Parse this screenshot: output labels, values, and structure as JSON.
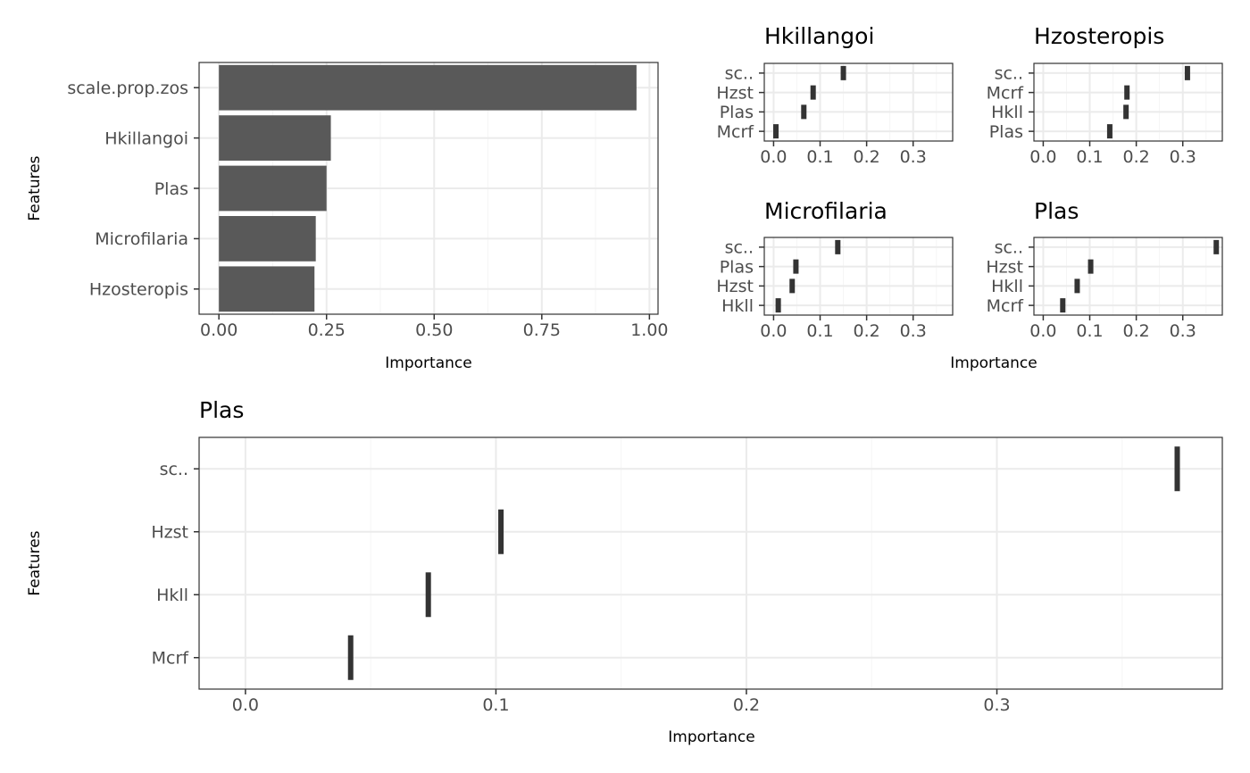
{
  "chart_data": [
    {
      "id": "overall",
      "type": "bar",
      "orientation": "horizontal",
      "title": "",
      "xlabel": "Importance",
      "ylabel": "Features",
      "categories": [
        "scale.prop.zos",
        "Hkillangoi",
        "Plas",
        "Microfilaria",
        "Hzosteropis"
      ],
      "values": [
        0.97,
        0.26,
        0.25,
        0.225,
        0.222
      ],
      "xlim": [
        -0.046,
        1.02
      ],
      "xticks": [
        0,
        0.25,
        0.5,
        0.75,
        1.0
      ],
      "xtick_labels": [
        "0.00",
        "0.25",
        "0.50",
        "0.75",
        "1.00"
      ],
      "bar_color": "#595959",
      "grid": true
    },
    {
      "id": "small-hkillangoi",
      "type": "scatter",
      "mark": "vertical-tick",
      "title": "Hkillangoi",
      "xlabel": "",
      "ylabel": "",
      "categories": [
        "sc..",
        "Hzst",
        "Plas",
        "Mcrf"
      ],
      "values": [
        0.15,
        0.085,
        0.065,
        0.005
      ],
      "xlim": [
        -0.02,
        0.385
      ],
      "xticks": [
        0,
        0.1,
        0.2,
        0.3
      ],
      "xtick_labels": [
        "0.0",
        "0.1",
        "0.2",
        "0.3"
      ],
      "grid": true
    },
    {
      "id": "small-hzosteropis",
      "type": "scatter",
      "mark": "vertical-tick",
      "title": "Hzosteropis",
      "xlabel": "",
      "ylabel": "",
      "categories": [
        "sc..",
        "Mcrf",
        "Hkll",
        "Plas"
      ],
      "values": [
        0.31,
        0.18,
        0.178,
        0.143
      ],
      "xlim": [
        -0.02,
        0.385
      ],
      "xticks": [
        0,
        0.1,
        0.2,
        0.3
      ],
      "xtick_labels": [
        "0.0",
        "0.1",
        "0.2",
        "0.3"
      ],
      "grid": true
    },
    {
      "id": "small-microfilaria",
      "type": "scatter",
      "mark": "vertical-tick",
      "title": "Microfilaria",
      "xlabel": "",
      "ylabel": "",
      "categories": [
        "sc..",
        "Plas",
        "Hzst",
        "Hkll"
      ],
      "values": [
        0.138,
        0.048,
        0.04,
        0.01
      ],
      "xlim": [
        -0.02,
        0.385
      ],
      "xticks": [
        0,
        0.1,
        0.2,
        0.3
      ],
      "xtick_labels": [
        "0.0",
        "0.1",
        "0.2",
        "0.3"
      ],
      "grid": true
    },
    {
      "id": "small-plas",
      "type": "scatter",
      "mark": "vertical-tick",
      "title": "Plas",
      "xlabel": "",
      "ylabel": "",
      "categories": [
        "sc..",
        "Hzst",
        "Hkll",
        "Mcrf"
      ],
      "values": [
        0.372,
        0.102,
        0.073,
        0.042
      ],
      "xlim": [
        -0.02,
        0.385
      ],
      "xticks": [
        0,
        0.1,
        0.2,
        0.3
      ],
      "xtick_labels": [
        "0.0",
        "0.1",
        "0.2",
        "0.3"
      ],
      "grid": true
    },
    {
      "id": "large-plas",
      "type": "scatter",
      "mark": "vertical-tick",
      "title": "Plas",
      "xlabel": "Importance",
      "ylabel": "Features",
      "categories": [
        "sc..",
        "Hzst",
        "Hkll",
        "Mcrf"
      ],
      "values": [
        0.372,
        0.102,
        0.073,
        0.042
      ],
      "xlim": [
        -0.0185,
        0.39
      ],
      "xticks": [
        0,
        0.1,
        0.2,
        0.3
      ],
      "xtick_labels": [
        "0.0",
        "0.1",
        "0.2",
        "0.3"
      ],
      "grid": true
    }
  ],
  "shared_labels": {
    "small_panels_xlabel": "Importance"
  },
  "colors": {
    "panel_border": "#333333",
    "grid_major": "#ebebeb",
    "grid_minor": "#f5f5f5",
    "mark": "#333333",
    "bar": "#595959",
    "tick_text": "#4d4d4d"
  }
}
